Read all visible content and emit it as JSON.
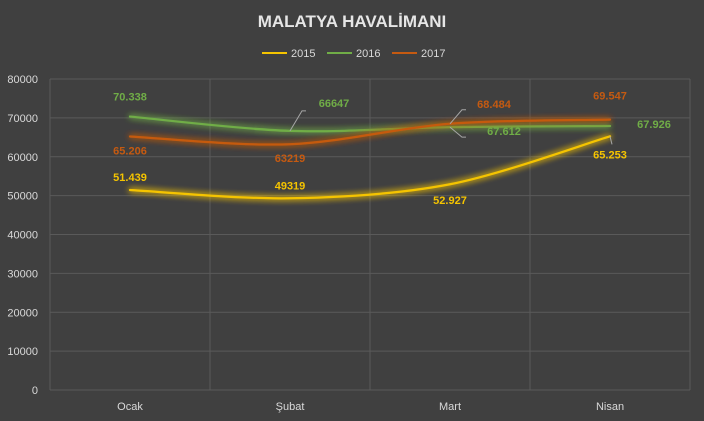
{
  "chart_data": {
    "type": "line",
    "title": "MALATYA HAVALİMANI",
    "categories": [
      "Ocak",
      "Şubat",
      "Mart",
      "Nisan"
    ],
    "series": [
      {
        "name": "2015",
        "color": "#f5c400",
        "values": [
          51439,
          49319,
          52927,
          65253
        ],
        "labels": [
          "51.439",
          "49319",
          "52.927",
          "65.253"
        ]
      },
      {
        "name": "2016",
        "color": "#70ad47",
        "values": [
          70338,
          66647,
          67612,
          67926
        ],
        "labels": [
          "70.338",
          "66647",
          "67.612",
          "67.926"
        ]
      },
      {
        "name": "2017",
        "color": "#c55a11",
        "values": [
          65206,
          63219,
          68484,
          69547
        ],
        "labels": [
          "65.206",
          "63219",
          "68.484",
          "69.547"
        ]
      }
    ],
    "ylim": [
      0,
      80000
    ],
    "yticks": [
      0,
      10000,
      20000,
      30000,
      40000,
      50000,
      60000,
      70000,
      80000
    ],
    "grid": true,
    "legend": "top",
    "xlabel": "",
    "ylabel": ""
  }
}
